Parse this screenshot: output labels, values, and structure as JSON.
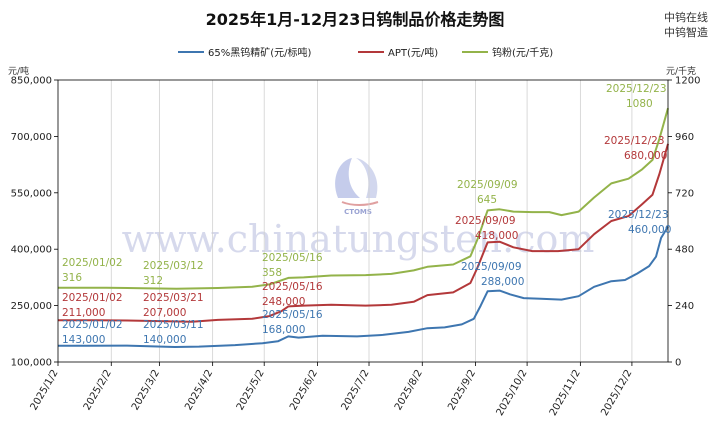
{
  "header": {
    "title": "2025年1月-12月23日钨制品价格走势图",
    "brand_lines": [
      "中钨在线",
      "中钨智造"
    ]
  },
  "watermark": {
    "text": "www.chinatungsten.com",
    "logo_text": "CTOMS"
  },
  "colors": {
    "series": [
      "#3e76b0",
      "#b3383a",
      "#93b34a"
    ],
    "grid": "#d0d0d0",
    "axis": "#000000"
  },
  "chart_data": {
    "type": "line",
    "title": "2025年1月-12月23日钨制品价格走势图",
    "left_axis": {
      "unit": "元/吨",
      "min": 100000,
      "max": 850000,
      "ticks": [
        "100,000",
        "250,000",
        "400,000",
        "550,000",
        "700,000",
        "850,000"
      ]
    },
    "right_axis": {
      "unit": "元/千克",
      "min": 0,
      "max": 1200,
      "ticks": [
        "0",
        "240",
        "480",
        "720",
        "960",
        "1200"
      ]
    },
    "x_axis": {
      "start": "2025-01-02",
      "end": "2025-12-23",
      "ticks": [
        {
          "label": "2025/1/2",
          "date": "2025-01-02"
        },
        {
          "label": "2025/2/2",
          "date": "2025-02-02"
        },
        {
          "label": "2025/3/2",
          "date": "2025-03-02"
        },
        {
          "label": "2025/4/2",
          "date": "2025-04-02"
        },
        {
          "label": "2025/5/2",
          "date": "2025-05-02"
        },
        {
          "label": "2025/6/2",
          "date": "2025-06-02"
        },
        {
          "label": "2025/7/2",
          "date": "2025-07-02"
        },
        {
          "label": "2025/8/2",
          "date": "2025-08-02"
        },
        {
          "label": "2025/9/2",
          "date": "2025-09-02"
        },
        {
          "label": "2025/10/2",
          "date": "2025-10-02"
        },
        {
          "label": "2025/11/2",
          "date": "2025-11-02"
        },
        {
          "label": "2025/12/2",
          "date": "2025-12-02"
        }
      ]
    },
    "grid": "vertical",
    "legend_position": "top",
    "series": [
      {
        "name": "65%黑钨精矿(元/标吨)",
        "axis": "left",
        "points": [
          [
            "2025-01-02",
            143000
          ],
          [
            "2025-01-20",
            143000
          ],
          [
            "2025-02-10",
            143500
          ],
          [
            "2025-03-11",
            140000
          ],
          [
            "2025-03-25",
            141000
          ],
          [
            "2025-04-15",
            145000
          ],
          [
            "2025-05-01",
            150000
          ],
          [
            "2025-05-10",
            155000
          ],
          [
            "2025-05-16",
            168000
          ],
          [
            "2025-05-22",
            165000
          ],
          [
            "2025-06-05",
            170000
          ],
          [
            "2025-06-25",
            168000
          ],
          [
            "2025-07-10",
            172000
          ],
          [
            "2025-07-25",
            180000
          ],
          [
            "2025-08-05",
            190000
          ],
          [
            "2025-08-15",
            192000
          ],
          [
            "2025-08-25",
            200000
          ],
          [
            "2025-09-01",
            215000
          ],
          [
            "2025-09-05",
            250000
          ],
          [
            "2025-09-09",
            288000
          ],
          [
            "2025-09-16",
            290000
          ],
          [
            "2025-09-22",
            280000
          ],
          [
            "2025-09-30",
            270000
          ],
          [
            "2025-10-10",
            268000
          ],
          [
            "2025-10-22",
            266000
          ],
          [
            "2025-11-01",
            275000
          ],
          [
            "2025-11-10",
            300000
          ],
          [
            "2025-11-20",
            315000
          ],
          [
            "2025-11-28",
            318000
          ],
          [
            "2025-12-05",
            335000
          ],
          [
            "2025-12-12",
            355000
          ],
          [
            "2025-12-16",
            380000
          ],
          [
            "2025-12-19",
            430000
          ],
          [
            "2025-12-23",
            460000
          ]
        ]
      },
      {
        "name": "APT(元/吨)",
        "axis": "left",
        "points": [
          [
            "2025-01-02",
            211000
          ],
          [
            "2025-01-25",
            211000
          ],
          [
            "2025-02-15",
            210000
          ],
          [
            "2025-03-21",
            207000
          ],
          [
            "2025-04-05",
            212000
          ],
          [
            "2025-04-25",
            215000
          ],
          [
            "2025-05-05",
            222000
          ],
          [
            "2025-05-12",
            235000
          ],
          [
            "2025-05-16",
            248000
          ],
          [
            "2025-05-25",
            250000
          ],
          [
            "2025-06-10",
            252000
          ],
          [
            "2025-06-30",
            250000
          ],
          [
            "2025-07-15",
            252000
          ],
          [
            "2025-07-28",
            260000
          ],
          [
            "2025-08-05",
            278000
          ],
          [
            "2025-08-20",
            285000
          ],
          [
            "2025-08-30",
            310000
          ],
          [
            "2025-09-03",
            350000
          ],
          [
            "2025-09-09",
            418000
          ],
          [
            "2025-09-16",
            420000
          ],
          [
            "2025-09-24",
            405000
          ],
          [
            "2025-10-05",
            395000
          ],
          [
            "2025-10-20",
            395000
          ],
          [
            "2025-11-01",
            400000
          ],
          [
            "2025-11-10",
            440000
          ],
          [
            "2025-11-20",
            475000
          ],
          [
            "2025-11-30",
            488000
          ],
          [
            "2025-12-08",
            520000
          ],
          [
            "2025-12-14",
            545000
          ],
          [
            "2025-12-18",
            600000
          ],
          [
            "2025-12-23",
            680000
          ]
        ]
      },
      {
        "name": "钨粉(元/千克)",
        "axis": "right",
        "points": [
          [
            "2025-01-02",
            316
          ],
          [
            "2025-01-30",
            316
          ],
          [
            "2025-02-20",
            314
          ],
          [
            "2025-03-12",
            312
          ],
          [
            "2025-04-05",
            315
          ],
          [
            "2025-04-25",
            320
          ],
          [
            "2025-05-05",
            330
          ],
          [
            "2025-05-16",
            358
          ],
          [
            "2025-05-25",
            360
          ],
          [
            "2025-06-10",
            368
          ],
          [
            "2025-06-30",
            370
          ],
          [
            "2025-07-15",
            375
          ],
          [
            "2025-07-28",
            390
          ],
          [
            "2025-08-05",
            405
          ],
          [
            "2025-08-20",
            415
          ],
          [
            "2025-08-30",
            450
          ],
          [
            "2025-09-03",
            520
          ],
          [
            "2025-09-09",
            645
          ],
          [
            "2025-09-16",
            650
          ],
          [
            "2025-09-24",
            640
          ],
          [
            "2025-10-05",
            638
          ],
          [
            "2025-10-15",
            638
          ],
          [
            "2025-10-22",
            625
          ],
          [
            "2025-11-01",
            640
          ],
          [
            "2025-11-10",
            700
          ],
          [
            "2025-11-20",
            760
          ],
          [
            "2025-11-30",
            780
          ],
          [
            "2025-12-08",
            820
          ],
          [
            "2025-12-14",
            860
          ],
          [
            "2025-12-18",
            950
          ],
          [
            "2025-12-23",
            1080
          ]
        ]
      }
    ],
    "annotations": [
      {
        "series": 0,
        "date": "2025/01/02",
        "value": "143,000"
      },
      {
        "series": 0,
        "date": "2025/03/11",
        "value": "140,000"
      },
      {
        "series": 0,
        "date": "2025/05/16",
        "value": "168,000"
      },
      {
        "series": 0,
        "date": "2025/09/09",
        "value": "288,000"
      },
      {
        "series": 0,
        "date": "2025/12/23",
        "value": "460,000"
      },
      {
        "series": 1,
        "date": "2025/01/02",
        "value": "211,000"
      },
      {
        "series": 1,
        "date": "2025/03/21",
        "value": "207,000"
      },
      {
        "series": 1,
        "date": "2025/05/16",
        "value": "248,000"
      },
      {
        "series": 1,
        "date": "2025/09/09",
        "value": "418,000"
      },
      {
        "series": 1,
        "date": "2025/12/23",
        "value": "680,000"
      },
      {
        "series": 2,
        "date": "2025/01/02",
        "value": "316"
      },
      {
        "series": 2,
        "date": "2025/03/12",
        "value": "312"
      },
      {
        "series": 2,
        "date": "2025/05/16",
        "value": "358"
      },
      {
        "series": 2,
        "date": "2025/09/09",
        "value": "645"
      },
      {
        "series": 2,
        "date": "2025/12/23",
        "value": "1080"
      }
    ]
  }
}
